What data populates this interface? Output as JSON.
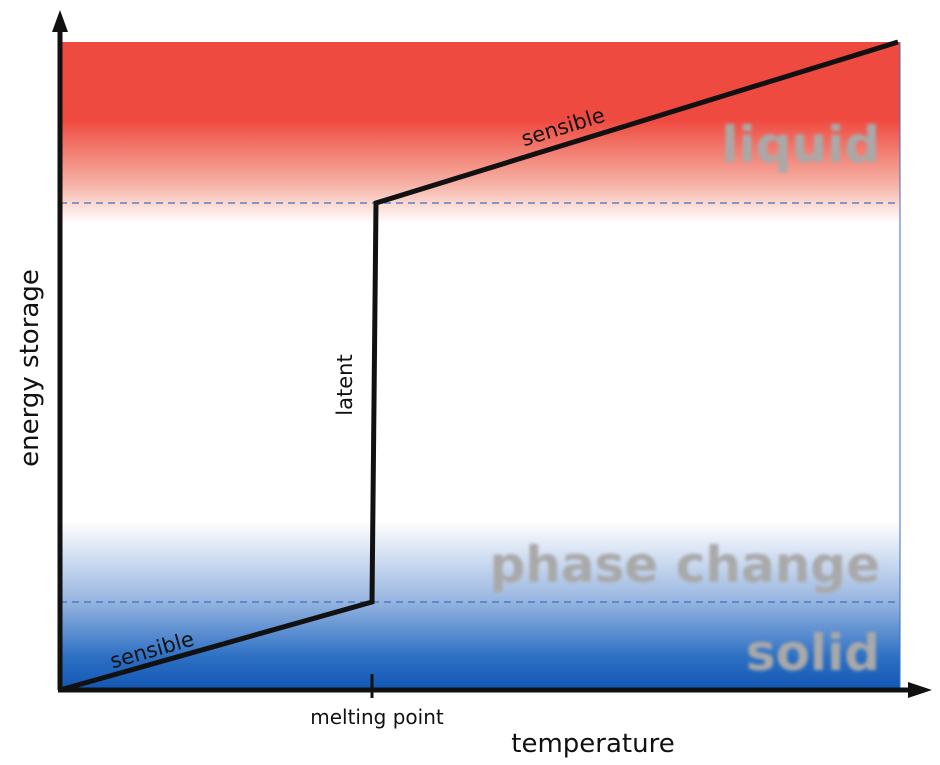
{
  "diagram": {
    "axes": {
      "ylabel": "energy storage",
      "xlabel": "temperature",
      "xtick": "melting point"
    },
    "zones": {
      "liquid": "liquid",
      "phase_change": "phase change",
      "solid": "solid"
    },
    "segments": {
      "lower": "sensible",
      "vertical": "latent",
      "upper": "sensible"
    },
    "colors": {
      "liquid": "#ef4a3f",
      "solid": "#1a63bd",
      "curve": "#111111",
      "divider": "#3f6fc0",
      "zone_text": "#a9a9a9"
    }
  }
}
